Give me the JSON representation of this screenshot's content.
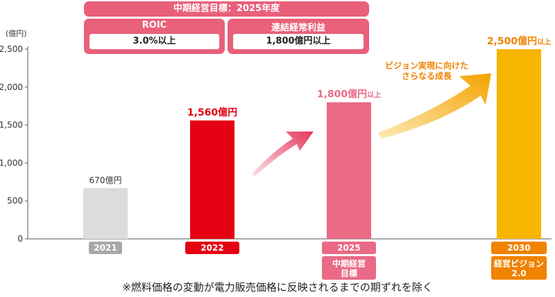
{
  "target": {
    "header": "中期経営目標：2025年度",
    "items": [
      {
        "label": "ROIC",
        "value": "3.0%以上"
      },
      {
        "label": "連結経常利益",
        "value": "1,800億円以上"
      }
    ]
  },
  "footnote": "※燃料価格の変動が電力販売価格に反映されるまでの期ずれを除く",
  "arrow_caption": [
    "ビジョン実現に向けた",
    "さらなる成長"
  ],
  "chart_data": {
    "type": "bar",
    "yunit": "(億円)",
    "yticks": [
      0,
      500,
      1000,
      1500,
      2000,
      2500
    ],
    "ytick_labels": [
      "0",
      "500",
      "1,000",
      "1,500",
      "2,000",
      "2,500"
    ],
    "ylim": [
      0,
      2700
    ],
    "grid": false,
    "bars": [
      {
        "category": "2021",
        "value": 670,
        "label": "670億円",
        "label_suffix": "",
        "color": "#dcdcdc",
        "label_color": "#333333",
        "sublabel": [],
        "badge_color": "#a8a8a8"
      },
      {
        "category": "2022",
        "value": 1560,
        "label": "1,560億円",
        "label_suffix": "",
        "color": "#e50012",
        "label_color": "#e50012",
        "sublabel": [],
        "badge_color": "#e50012"
      },
      {
        "category": "2025",
        "value": 1800,
        "label": "1,800億円",
        "label_suffix": "以上",
        "color": "#ea6a86",
        "label_color": "#ea6a86",
        "sublabel": [
          "中期経営",
          "目標"
        ],
        "badge_color": "#ea6a86"
      },
      {
        "category": "2030",
        "value": 2500,
        "label": "2,500億円",
        "label_suffix": "以上",
        "color": "#f7b500",
        "label_color": "#f08300",
        "sublabel": [
          "経営ビジョン",
          "2.0"
        ],
        "badge_color": "#f08300"
      }
    ]
  }
}
